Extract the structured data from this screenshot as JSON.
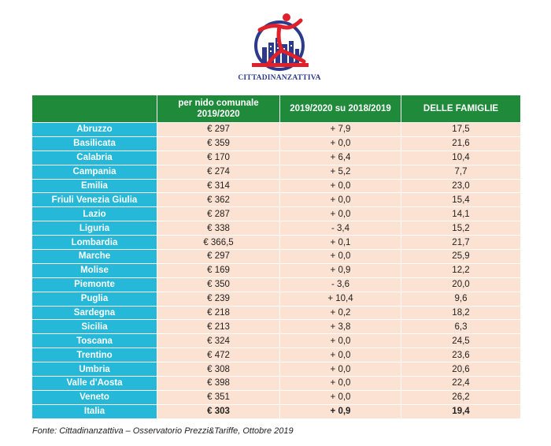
{
  "logo": {
    "text": "CITTADINANZATTIVA"
  },
  "table": {
    "headers": [
      "",
      "per nido comunale 2019/2020",
      "2019/2020 su 2018/2019",
      "DELLE FAMIGLIE"
    ],
    "rows": [
      [
        "Abruzzo",
        "€ 297",
        "+ 7,9",
        "17,5"
      ],
      [
        "Basilicata",
        "€ 359",
        "+ 0,0",
        "21,6"
      ],
      [
        "Calabria",
        "€ 170",
        "+ 6,4",
        "10,4"
      ],
      [
        "Campania",
        "€ 274",
        "+ 5,2",
        "7,7"
      ],
      [
        "Emilia",
        "€ 314",
        "+ 0,0",
        "23,0"
      ],
      [
        "Friuli Venezia Giulia",
        "€ 362",
        "+ 0,0",
        "15,4"
      ],
      [
        "Lazio",
        "€ 287",
        "+ 0,0",
        "14,1"
      ],
      [
        "Liguria",
        "€ 338",
        "- 3,4",
        "15,2"
      ],
      [
        "Lombardia",
        "€ 366,5",
        "+ 0,1",
        "21,7"
      ],
      [
        "Marche",
        "€ 297",
        "+ 0,0",
        "25,9"
      ],
      [
        "Molise",
        "€ 169",
        "+ 0,9",
        "12,2"
      ],
      [
        "Piemonte",
        "€ 350",
        "- 3,6",
        "20,0"
      ],
      [
        "Puglia",
        "€ 239",
        "+ 10,4",
        "9,6"
      ],
      [
        "Sardegna",
        "€ 218",
        "+ 0,2",
        "18,2"
      ],
      [
        "Sicilia",
        "€ 213",
        "+ 3,8",
        "6,3"
      ],
      [
        "Toscana",
        "€ 324",
        "+ 0,0",
        "24,5"
      ],
      [
        "Trentino",
        "€ 472",
        "+ 0,0",
        "23,6"
      ],
      [
        "Umbria",
        "€ 308",
        "+ 0,0",
        "20,6"
      ],
      [
        "Valle d'Aosta",
        "€ 398",
        "+ 0,0",
        "22,4"
      ],
      [
        "Veneto",
        "€ 351",
        "+ 0,0",
        "26,2"
      ],
      [
        "Italia",
        "€ 303",
        "+ 0,9",
        "19,4"
      ]
    ]
  },
  "source": "Fonte: Cittadinanzattiva – Osservatorio Prezzi&Tariffe, Ottobre 2019",
  "colors": {
    "header_green": "#1e8a3a",
    "region_cyan": "#25b8d8",
    "cell_peach": "#fbe2d2",
    "logo_red": "#e0202a",
    "logo_blue": "#2c3a8c"
  }
}
